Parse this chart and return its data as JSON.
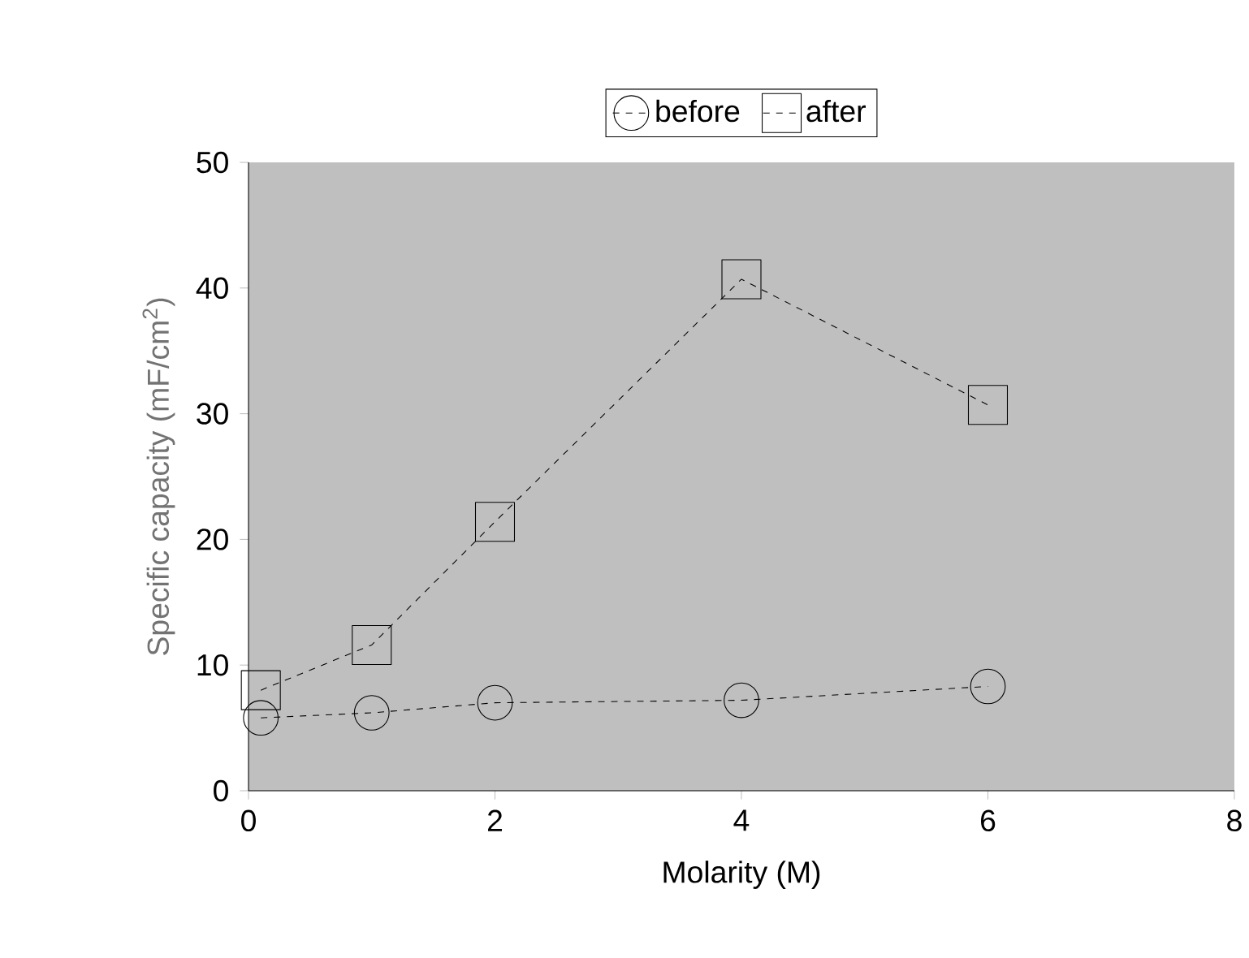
{
  "chart_data": {
    "type": "line",
    "xlabel": "Molarity (M)",
    "ylabel": "Specific capacity (mF/cm$^{2}$)",
    "x": [
      0.1,
      1,
      2,
      4,
      6
    ],
    "series": [
      {
        "name": "before",
        "color": "#000000",
        "marker": "circle",
        "values": [
          5.8,
          6.2,
          7.0,
          7.2,
          8.3
        ]
      },
      {
        "name": "after",
        "color": "#000000",
        "marker": "square",
        "values": [
          8.0,
          11.6,
          21.4,
          40.7,
          30.7
        ]
      }
    ],
    "xlim": [
      0,
      8
    ],
    "xticks": [
      0,
      2,
      4,
      6,
      8
    ],
    "ylim": [
      0,
      50
    ],
    "yticks": [
      0,
      10,
      20,
      30,
      40,
      50
    ],
    "grid": false,
    "legend": "top",
    "line_style": "dashed"
  }
}
